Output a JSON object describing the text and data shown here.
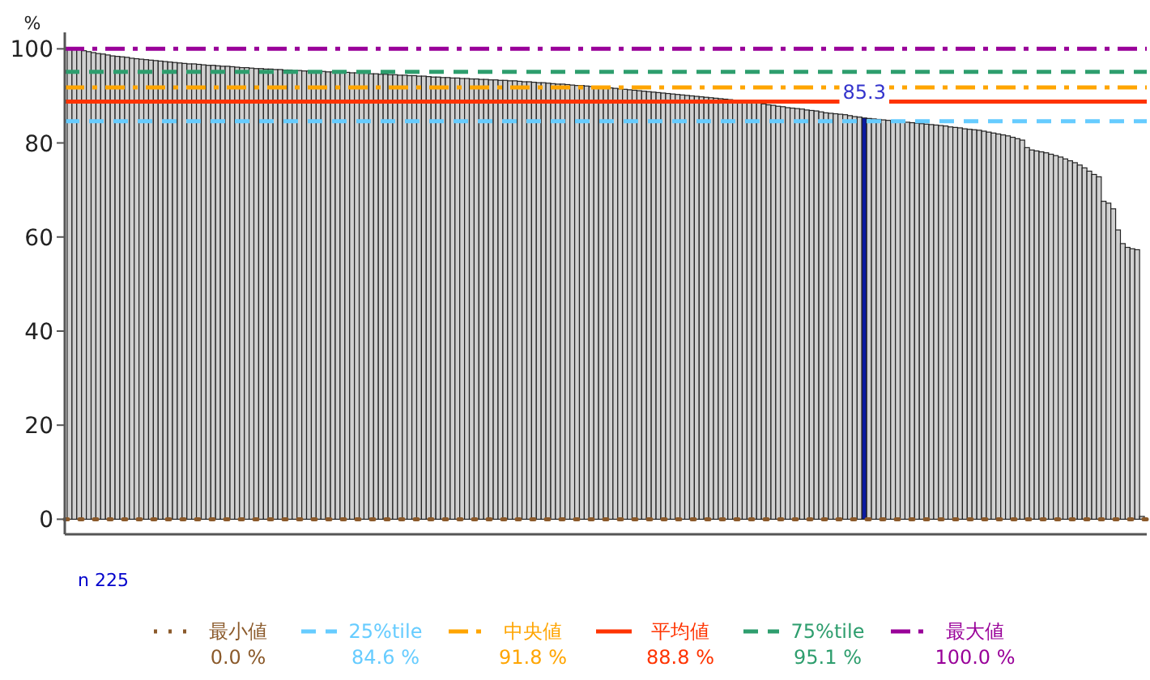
{
  "chart_data": {
    "type": "bar",
    "ylabel": "%",
    "categories": [
      null,
      null,
      null,
      null,
      null,
      null,
      null,
      null,
      null,
      null,
      null,
      null,
      null,
      null,
      null,
      null,
      null,
      null,
      null,
      null,
      null,
      null,
      null,
      null,
      null,
      null,
      null,
      null,
      null,
      null,
      null,
      null,
      null,
      null,
      null,
      null,
      null,
      null,
      null,
      null,
      null,
      null,
      null,
      null,
      null,
      null,
      null,
      null,
      null,
      null,
      null,
      null,
      null,
      null,
      null,
      null,
      null,
      null,
      null,
      null,
      null,
      null,
      null,
      null,
      null,
      null,
      null,
      null,
      null,
      null,
      null,
      null,
      null,
      null,
      null,
      null,
      null,
      null,
      null,
      null,
      null,
      null,
      null,
      null,
      null,
      null,
      null,
      null,
      null,
      null,
      null,
      null,
      null,
      null,
      null,
      null,
      null,
      null,
      null,
      null,
      null,
      null,
      null,
      null,
      null,
      null,
      null,
      null,
      null,
      null,
      null,
      null,
      null,
      null,
      null,
      null,
      null,
      null,
      null,
      null,
      null,
      null,
      null,
      null,
      null,
      null,
      null,
      null,
      null,
      null,
      null,
      null,
      null,
      null,
      null,
      null,
      null,
      null,
      null,
      null,
      null,
      null,
      null,
      null,
      null,
      null,
      null,
      null,
      null,
      null,
      null,
      null,
      null,
      null,
      null,
      null,
      null,
      null,
      null,
      null,
      null,
      null,
      null,
      null,
      null,
      null,
      null,
      null,
      null,
      null,
      null,
      null,
      null,
      null,
      null,
      null,
      null,
      null,
      null,
      null,
      null,
      null,
      null,
      null,
      null,
      null,
      null,
      null,
      null,
      null,
      null,
      null,
      null,
      null,
      null,
      null,
      null,
      null,
      null,
      null,
      null,
      null,
      null,
      null,
      null,
      null,
      null,
      null,
      null,
      null,
      null,
      null,
      null,
      null,
      null,
      null,
      null,
      null,
      null,
      null,
      null,
      null,
      null,
      null,
      null
    ],
    "values": [
      100,
      99.9,
      99.8,
      99.6,
      99.4,
      99.2,
      99.0,
      98.9,
      98.7,
      98.5,
      98.4,
      98.3,
      98.2,
      98.0,
      97.9,
      97.8,
      97.7,
      97.6,
      97.5,
      97.4,
      97.3,
      97.2,
      97.1,
      97.0,
      96.9,
      96.8,
      96.8,
      96.7,
      96.6,
      96.5,
      96.5,
      96.4,
      96.3,
      96.3,
      96.2,
      96.1,
      96.0,
      96.0,
      95.9,
      95.8,
      95.8,
      95.7,
      95.7,
      95.6,
      95.6,
      95.5,
      95.5,
      95.4,
      95.4,
      95.3,
      95.3,
      95.2,
      95.2,
      95.2,
      95.1,
      95.1,
      95.1,
      95.0,
      95.0,
      94.9,
      94.9,
      94.8,
      94.8,
      94.7,
      94.7,
      94.6,
      94.6,
      94.5,
      94.5,
      94.4,
      94.4,
      94.3,
      94.3,
      94.2,
      94.2,
      94.1,
      94.0,
      94.0,
      93.9,
      93.9,
      93.8,
      93.8,
      93.7,
      93.7,
      93.6,
      93.6,
      93.5,
      93.5,
      93.4,
      93.4,
      93.3,
      93.3,
      93.2,
      93.2,
      93.1,
      93.0,
      93.0,
      92.9,
      92.8,
      92.8,
      92.7,
      92.6,
      92.5,
      92.5,
      92.4,
      92.3,
      92.2,
      92.2,
      92.1,
      92.0,
      92.0,
      91.9,
      91.8,
      91.7,
      91.6,
      91.5,
      91.4,
      91.3,
      91.2,
      91.1,
      91.0,
      90.9,
      90.8,
      90.7,
      90.6,
      90.5,
      90.4,
      90.3,
      90.2,
      90.1,
      90.0,
      89.9,
      89.8,
      89.7,
      89.6,
      89.5,
      89.4,
      89.3,
      89.2,
      89.1,
      89.0,
      88.9,
      88.8,
      88.7,
      88.5,
      88.3,
      88.1,
      88.0,
      87.8,
      87.7,
      87.5,
      87.4,
      87.3,
      87.2,
      87.0,
      86.9,
      86.8,
      86.6,
      86.4,
      86.3,
      86.2,
      86.1,
      86.0,
      85.8,
      85.6,
      85.5,
      85.3,
      85.2,
      85.1,
      85.0,
      84.9,
      84.8,
      84.7,
      84.6,
      84.5,
      84.4,
      84.3,
      84.2,
      84.1,
      84.0,
      83.9,
      83.8,
      83.7,
      83.6,
      83.4,
      83.3,
      83.2,
      83.0,
      82.9,
      82.8,
      82.7,
      82.5,
      82.3,
      82.1,
      81.9,
      81.7,
      81.5,
      81.2,
      80.9,
      80.6,
      79.0,
      78.5,
      78.3,
      78.1,
      77.9,
      77.6,
      77.3,
      77.0,
      76.6,
      76.2,
      75.8,
      75.3,
      74.7,
      74.0,
      73.3,
      72.8,
      67.6,
      67.2,
      66.0,
      61.5,
      58.6,
      57.8,
      57.5,
      57.3,
      0.6
    ],
    "colors": [
      "#d0d0d0",
      "#d0d0d0",
      "#d0d0d0",
      "#d0d0d0",
      "#d0d0d0",
      "#d0d0d0",
      "#d0d0d0",
      "#d0d0d0",
      "#d0d0d0",
      "#d0d0d0",
      "#d0d0d0",
      "#d0d0d0",
      "#d0d0d0",
      "#d0d0d0",
      "#d0d0d0",
      "#d0d0d0",
      "#d0d0d0",
      "#d0d0d0",
      "#d0d0d0",
      "#d0d0d0",
      "#d0d0d0",
      "#d0d0d0",
      "#d0d0d0",
      "#d0d0d0",
      "#d0d0d0",
      "#d0d0d0",
      "#d0d0d0",
      "#d0d0d0",
      "#d0d0d0",
      "#d0d0d0",
      "#d0d0d0",
      "#d0d0d0",
      "#d0d0d0",
      "#d0d0d0",
      "#d0d0d0",
      "#d0d0d0",
      "#d0d0d0",
      "#d0d0d0",
      "#d0d0d0",
      "#d0d0d0",
      "#d0d0d0",
      "#d0d0d0",
      "#d0d0d0",
      "#d0d0d0",
      "#d0d0d0",
      "#d0d0d0",
      "#d0d0d0",
      "#d0d0d0",
      "#d0d0d0",
      "#d0d0d0",
      "#d0d0d0",
      "#d0d0d0",
      "#d0d0d0",
      "#d0d0d0",
      "#d0d0d0",
      "#d0d0d0",
      "#d0d0d0",
      "#d0d0d0",
      "#d0d0d0",
      "#d0d0d0",
      "#d0d0d0",
      "#d0d0d0",
      "#d0d0d0",
      "#d0d0d0",
      "#d0d0d0",
      "#d0d0d0",
      "#d0d0d0",
      "#d0d0d0",
      "#d0d0d0",
      "#d0d0d0",
      "#d0d0d0",
      "#d0d0d0",
      "#d0d0d0",
      "#d0d0d0",
      "#d0d0d0",
      "#d0d0d0",
      "#d0d0d0",
      "#d0d0d0",
      "#d0d0d0",
      "#d0d0d0",
      "#d0d0d0",
      "#d0d0d0",
      "#d0d0d0",
      "#d0d0d0",
      "#d0d0d0",
      "#d0d0d0",
      "#d0d0d0",
      "#d0d0d0",
      "#d0d0d0",
      "#d0d0d0",
      "#d0d0d0",
      "#d0d0d0",
      "#d0d0d0",
      "#d0d0d0",
      "#d0d0d0",
      "#d0d0d0",
      "#d0d0d0",
      "#d0d0d0",
      "#d0d0d0",
      "#d0d0d0",
      "#d0d0d0",
      "#d0d0d0",
      "#d0d0d0",
      "#d0d0d0",
      "#d0d0d0",
      "#d0d0d0",
      "#d0d0d0",
      "#d0d0d0",
      "#d0d0d0",
      "#d0d0d0",
      "#d0d0d0",
      "#d0d0d0",
      "#d0d0d0",
      "#d0d0d0",
      "#d0d0d0",
      "#d0d0d0",
      "#d0d0d0",
      "#d0d0d0",
      "#d0d0d0",
      "#d0d0d0",
      "#d0d0d0",
      "#d0d0d0",
      "#d0d0d0",
      "#d0d0d0",
      "#d0d0d0",
      "#d0d0d0",
      "#d0d0d0",
      "#d0d0d0",
      "#d0d0d0",
      "#d0d0d0",
      "#d0d0d0",
      "#d0d0d0",
      "#d0d0d0",
      "#d0d0d0",
      "#d0d0d0",
      "#d0d0d0",
      "#d0d0d0",
      "#d0d0d0",
      "#d0d0d0",
      "#d0d0d0",
      "#d0d0d0",
      "#d0d0d0",
      "#d0d0d0",
      "#d0d0d0",
      "#d0d0d0",
      "#d0d0d0",
      "#d0d0d0",
      "#d0d0d0",
      "#d0d0d0",
      "#d0d0d0",
      "#d0d0d0",
      "#d0d0d0",
      "#d0d0d0",
      "#d0d0d0",
      "#d0d0d0",
      "#d0d0d0",
      "#d0d0d0",
      "#d0d0d0",
      "#d0d0d0",
      "#d0d0d0",
      "#d0d0d0",
      "#d0d0d0",
      "#d0d0d0",
      "#d0d0d0",
      "#d0d0d0",
      "#d0d0d0",
      "#0a1aa0",
      "#d0d0d0",
      "#d0d0d0",
      "#d0d0d0",
      "#d0d0d0",
      "#d0d0d0",
      "#d0d0d0",
      "#d0d0d0",
      "#d0d0d0",
      "#d0d0d0",
      "#d0d0d0",
      "#d0d0d0",
      "#d0d0d0",
      "#d0d0d0",
      "#d0d0d0",
      "#d0d0d0",
      "#d0d0d0",
      "#d0d0d0",
      "#d0d0d0",
      "#d0d0d0",
      "#d0d0d0",
      "#d0d0d0",
      "#d0d0d0",
      "#d0d0d0",
      "#d0d0d0",
      "#d0d0d0",
      "#d0d0d0",
      "#d0d0d0",
      "#d0d0d0",
      "#d0d0d0",
      "#d0d0d0",
      "#d0d0d0",
      "#d0d0d0",
      "#d0d0d0",
      "#d0d0d0",
      "#d0d0d0",
      "#d0d0d0",
      "#d0d0d0",
      "#d0d0d0",
      "#d0d0d0",
      "#d0d0d0",
      "#d0d0d0",
      "#d0d0d0",
      "#d0d0d0",
      "#d0d0d0",
      "#d0d0d0",
      "#d0d0d0",
      "#d0d0d0",
      "#d0d0d0",
      "#d0d0d0",
      "#d0d0d0",
      "#d0d0d0",
      "#d0d0d0",
      "#d0d0d0",
      "#d0d0d0",
      "#d0d0d0",
      "#d0d0d0",
      "#d0d0d0",
      "#d0d0d0"
    ],
    "value_labels": [
      null,
      null,
      null,
      null,
      null,
      null,
      null,
      null,
      null,
      null,
      null,
      null,
      null,
      null,
      null,
      null,
      null,
      null,
      null,
      null,
      null,
      null,
      null,
      null,
      null,
      null,
      null,
      null,
      null,
      null,
      null,
      null,
      null,
      null,
      null,
      null,
      null,
      null,
      null,
      null,
      null,
      null,
      null,
      null,
      null,
      null,
      null,
      null,
      null,
      null,
      null,
      null,
      null,
      null,
      null,
      null,
      null,
      null,
      null,
      null,
      null,
      null,
      null,
      null,
      null,
      null,
      null,
      null,
      null,
      null,
      null,
      null,
      null,
      null,
      null,
      null,
      null,
      null,
      null,
      null,
      null,
      null,
      null,
      null,
      null,
      null,
      null,
      null,
      null,
      null,
      null,
      null,
      null,
      null,
      null,
      null,
      null,
      null,
      null,
      null,
      null,
      null,
      null,
      null,
      null,
      null,
      null,
      null,
      null,
      null,
      null,
      null,
      null,
      null,
      null,
      null,
      null,
      null,
      null,
      null,
      null,
      null,
      null,
      null,
      null,
      null,
      null,
      null,
      null,
      null,
      null,
      null,
      null,
      null,
      null,
      null,
      null,
      null,
      null,
      null,
      null,
      null,
      null,
      null,
      null,
      null,
      null,
      null,
      null,
      null,
      null,
      null,
      null,
      null,
      null,
      null,
      null,
      null,
      null,
      null,
      null,
      null,
      null,
      null,
      null,
      null,
      "85.3",
      null,
      null,
      null,
      null,
      null,
      null,
      null,
      null,
      null,
      null,
      null,
      null,
      null,
      null,
      null,
      null,
      null,
      null,
      null,
      null,
      null,
      null,
      null,
      null,
      null,
      null,
      null,
      null,
      null,
      null,
      null,
      null,
      null,
      null,
      null,
      null,
      null,
      null,
      null,
      null,
      null,
      null,
      null,
      null,
      null,
      null,
      null,
      null,
      null,
      null,
      null,
      null,
      null,
      null,
      null,
      null,
      null,
      null
    ],
    "ylim": [
      -3.2,
      103.5
    ],
    "yticks": [
      0,
      20,
      40,
      60,
      80,
      100
    ],
    "tick_labels": "y",
    "legend": "bottom",
    "ref_lines": [
      {
        "axis": "y",
        "value": 0.0,
        "label": "最小値\n0.0 %",
        "color": "#8b5a2b",
        "line_style": "dotted"
      },
      {
        "axis": "y",
        "value": 84.6,
        "label": "25%tile\n84.6 %",
        "color": "#66ccff",
        "line_style": "dashed"
      },
      {
        "axis": "y",
        "value": 91.8,
        "label": "中央値\n91.8 %",
        "color": "#ffa500",
        "line_style": "dashdot"
      },
      {
        "axis": "y",
        "value": 88.8,
        "label": "平均値\n88.8 %",
        "color": "#ff3300",
        "line_style": "solid"
      },
      {
        "axis": "y",
        "value": 95.1,
        "label": "75%tile\n95.1 %",
        "color": "#2e9e6e",
        "line_style": "dashed"
      },
      {
        "axis": "y",
        "value": 100.0,
        "label": "最大値\n100.0 %",
        "color": "#990099",
        "line_style": "dashdot"
      }
    ],
    "annotations": [
      "n  225"
    ]
  }
}
